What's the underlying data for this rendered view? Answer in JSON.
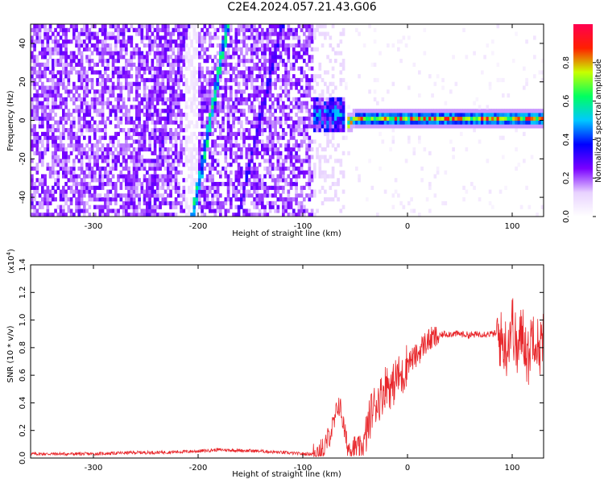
{
  "figure": {
    "title": "C2E4.2024.057.21.43.G06"
  },
  "chart_data": [
    {
      "type": "heatmap",
      "xlabel": "Height of straight line (km)",
      "ylabel": "Frequency (Hz)",
      "xlim": [
        -360,
        130
      ],
      "ylim": [
        -50,
        50
      ],
      "x_ticks": [
        -300,
        -200,
        -100,
        0,
        100
      ],
      "y_ticks": [
        -40,
        -20,
        0,
        20,
        40
      ],
      "grid": false,
      "features": {
        "noise_region_x": [
          -360,
          -90
        ],
        "sparse_region_x": [
          -90,
          -60
        ],
        "steady_line_x": [
          -50,
          130
        ],
        "steady_line_freq": 1,
        "diagonal_streaks": [
          {
            "x_at_bottom": -205,
            "x_at_top": -172,
            "amplitude": 0.55
          },
          {
            "x_at_bottom": -162,
            "x_at_top": -120,
            "amplitude": 0.3
          },
          {
            "x_at_bottom": -250,
            "x_at_top": -210,
            "amplitude": 0.25
          },
          {
            "x_at_bottom": -270,
            "x_at_top": -228,
            "amplitude": 0.2
          }
        ]
      },
      "colorbar": {
        "label": "Normalized spectral amplitude",
        "range": [
          0,
          1
        ],
        "ticks": [
          0.0,
          0.2,
          0.4,
          0.6,
          0.8
        ],
        "colors": [
          "#ffffff",
          "#e8d2ff",
          "#7a00ff",
          "#0000ff",
          "#00c8ff",
          "#00ff60",
          "#c8ff00",
          "#ff2000",
          "#ff0050"
        ]
      }
    },
    {
      "type": "line",
      "xlabel": "Height of straight line (km)",
      "ylabel": "SNR (10 * v/v)",
      "y_multiplier_label": "(x10",
      "y_multiplier_exp": "4",
      "y_multiplier_close": ")",
      "xlim": [
        -360,
        130
      ],
      "ylim": [
        0,
        1.4
      ],
      "x_ticks": [
        -300,
        -200,
        -100,
        0,
        100
      ],
      "y_ticks": [
        0.0,
        0.2,
        0.4,
        0.6,
        0.8,
        1.0,
        1.2,
        1.4
      ],
      "color": "#e8262a",
      "series": [
        {
          "x": [
            -360,
            -340,
            -320,
            -300,
            -280,
            -260,
            -240,
            -220,
            -200,
            -180,
            -160,
            -140,
            -120,
            -100,
            -90,
            -80,
            -75,
            -70,
            -66,
            -63,
            -60,
            -57,
            -54,
            -50,
            -46,
            -42,
            -38,
            -34,
            -30,
            -25,
            -20,
            -15,
            -10,
            -5,
            0,
            5,
            10,
            15,
            20,
            25,
            30,
            35,
            40,
            50,
            60,
            70,
            80,
            85,
            90,
            95,
            100,
            105,
            110,
            115,
            120,
            125,
            130
          ],
          "y": [
            0.03,
            0.03,
            0.03,
            0.03,
            0.035,
            0.04,
            0.04,
            0.045,
            0.05,
            0.06,
            0.055,
            0.05,
            0.04,
            0.03,
            0.03,
            0.06,
            0.16,
            0.25,
            0.4,
            0.33,
            0.18,
            0.08,
            0.07,
            0.08,
            0.07,
            0.1,
            0.22,
            0.35,
            0.4,
            0.45,
            0.55,
            0.5,
            0.6,
            0.58,
            0.7,
            0.72,
            0.75,
            0.82,
            0.85,
            0.87,
            0.88,
            0.9,
            0.9,
            0.9,
            0.89,
            0.9,
            0.9,
            0.9,
            0.85,
            0.8,
            1.0,
            0.75,
            0.95,
            0.7,
            0.95,
            0.8,
            0.85
          ]
        }
      ]
    }
  ]
}
